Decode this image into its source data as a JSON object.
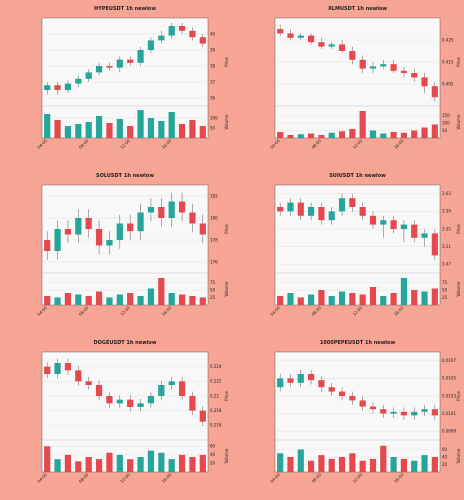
{
  "chart_data": [
    {
      "type": "candlestick",
      "title": "HYPEUSDT 1h newlow",
      "ylabel": "Price",
      "volume_label": "Volume",
      "up_color": "#26a69a",
      "down_color": "#e5484d",
      "categories": [
        "04:00",
        null,
        null,
        null,
        "08:00",
        null,
        null,
        null,
        "12:00",
        null,
        null,
        null,
        "16:00",
        null,
        null,
        null
      ],
      "open": [
        36.5,
        36.8,
        36.5,
        36.9,
        37.2,
        37.6,
        38.0,
        37.9,
        38.4,
        38.2,
        39.0,
        39.6,
        39.9,
        40.5,
        40.2,
        39.8
      ],
      "high": [
        37.0,
        37.0,
        37.1,
        37.4,
        37.8,
        38.2,
        38.2,
        38.6,
        38.6,
        39.2,
        39.8,
        40.2,
        40.7,
        40.7,
        40.4,
        40.0
      ],
      "low": [
        36.2,
        36.2,
        36.3,
        36.7,
        37.0,
        37.4,
        37.7,
        37.6,
        38.0,
        38.0,
        38.8,
        39.4,
        39.7,
        40.0,
        39.6,
        39.2
      ],
      "close": [
        36.8,
        36.5,
        36.9,
        37.2,
        37.6,
        38.0,
        37.9,
        38.4,
        38.2,
        39.0,
        39.6,
        39.9,
        40.5,
        40.2,
        39.8,
        39.4
      ],
      "volume": [
        120,
        90,
        60,
        70,
        80,
        110,
        75,
        95,
        60,
        140,
        100,
        85,
        130,
        70,
        90,
        60
      ],
      "ylim": [
        35.5,
        41
      ],
      "yticks": [
        36,
        37,
        38,
        39,
        40
      ],
      "volume_ylim": [
        0,
        150
      ],
      "volume_yticks": [
        50,
        100
      ]
    },
    {
      "type": "candlestick",
      "title": "XLMUSDT 1h newlow",
      "ylabel": "Price",
      "volume_label": "Volume",
      "up_color": "#26a69a",
      "down_color": "#e5484d",
      "categories": [
        "04:00",
        null,
        null,
        null,
        "08:00",
        null,
        null,
        null,
        "12:00",
        null,
        null,
        null,
        "16:00",
        null,
        null,
        null
      ],
      "open": [
        0.43,
        0.428,
        0.426,
        0.427,
        0.424,
        0.422,
        0.423,
        0.42,
        0.416,
        0.412,
        0.413,
        0.414,
        0.411,
        0.41,
        0.408,
        0.404
      ],
      "high": [
        0.432,
        0.43,
        0.428,
        0.428,
        0.426,
        0.424,
        0.425,
        0.422,
        0.418,
        0.415,
        0.416,
        0.416,
        0.413,
        0.412,
        0.41,
        0.406
      ],
      "low": [
        0.427,
        0.425,
        0.425,
        0.423,
        0.421,
        0.421,
        0.419,
        0.414,
        0.41,
        0.41,
        0.412,
        0.41,
        0.408,
        0.406,
        0.401,
        0.397
      ],
      "close": [
        0.428,
        0.426,
        0.427,
        0.424,
        0.422,
        0.423,
        0.42,
        0.416,
        0.412,
        0.413,
        0.414,
        0.411,
        0.41,
        0.408,
        0.404,
        0.399
      ],
      "volume": [
        40,
        20,
        25,
        30,
        20,
        35,
        45,
        60,
        180,
        50,
        30,
        40,
        35,
        50,
        70,
        90
      ],
      "ylim": [
        0.395,
        0.435
      ],
      "yticks": [
        0.405,
        0.415,
        0.425
      ],
      "volume_ylim": [
        0,
        200
      ],
      "volume_yticks": [
        50,
        100,
        150
      ]
    },
    {
      "type": "candlestick",
      "title": "SOLUSDT 1h newlow",
      "ylabel": "Price",
      "volume_label": "Volume",
      "up_color": "#26a69a",
      "down_color": "#e5484d",
      "categories": [
        "04:00",
        null,
        null,
        null,
        "08:00",
        null,
        null,
        null,
        "12:00",
        null,
        null,
        null,
        "16:00",
        null,
        null,
        null
      ],
      "open": [
        178,
        177,
        179,
        178.5,
        180,
        179,
        177.5,
        178,
        179.5,
        178.8,
        180.5,
        181,
        180,
        181.5,
        180.5,
        179.5
      ],
      "high": [
        178.8,
        179.8,
        179.8,
        180.8,
        180.8,
        179.8,
        178.8,
        180.3,
        180.3,
        181.3,
        181.8,
        181.8,
        182.3,
        182.3,
        181.3,
        180.3
      ],
      "low": [
        176.2,
        176.2,
        177.7,
        177.7,
        178.2,
        176.7,
        176.7,
        177.2,
        178.0,
        178.0,
        179.7,
        179.2,
        179.2,
        179.7,
        178.7,
        177.7
      ],
      "close": [
        177,
        179,
        178.5,
        180,
        179,
        177.5,
        178,
        179.5,
        178.8,
        180.5,
        181,
        180,
        181.5,
        180.5,
        179.5,
        178.5
      ],
      "volume": [
        30,
        25,
        40,
        35,
        30,
        45,
        25,
        35,
        40,
        30,
        55,
        90,
        40,
        35,
        30,
        25
      ],
      "ylim": [
        175,
        183
      ],
      "yticks": [
        176,
        178,
        180,
        182
      ],
      "volume_ylim": [
        0,
        100
      ],
      "volume_yticks": [
        25,
        50,
        75
      ]
    },
    {
      "type": "candlestick",
      "title": "SUIUSDT 1h newlow",
      "ylabel": "Price",
      "volume_label": "Volume",
      "up_color": "#26a69a",
      "down_color": "#e5484d",
      "categories": [
        "04:00",
        null,
        null,
        null,
        "08:00",
        null,
        null,
        null,
        "12:00",
        null,
        null,
        null,
        "16:00",
        null,
        null,
        null
      ],
      "open": [
        3.6,
        3.59,
        3.61,
        3.58,
        3.6,
        3.57,
        3.59,
        3.62,
        3.6,
        3.58,
        3.56,
        3.57,
        3.55,
        3.56,
        3.53,
        3.54
      ],
      "high": [
        3.61,
        3.62,
        3.62,
        3.61,
        3.61,
        3.6,
        3.63,
        3.63,
        3.61,
        3.59,
        3.58,
        3.58,
        3.57,
        3.57,
        3.55,
        3.55
      ],
      "low": [
        3.58,
        3.58,
        3.57,
        3.57,
        3.56,
        3.56,
        3.58,
        3.59,
        3.57,
        3.55,
        3.53,
        3.54,
        3.52,
        3.52,
        3.51,
        3.48
      ],
      "close": [
        3.59,
        3.61,
        3.58,
        3.6,
        3.57,
        3.59,
        3.62,
        3.6,
        3.58,
        3.56,
        3.57,
        3.55,
        3.56,
        3.53,
        3.54,
        3.49
      ],
      "volume": [
        30,
        40,
        25,
        35,
        50,
        30,
        45,
        40,
        35,
        60,
        30,
        40,
        90,
        50,
        45,
        55
      ],
      "ylim": [
        3.45,
        3.65
      ],
      "yticks": [
        3.47,
        3.51,
        3.55,
        3.59,
        3.63
      ],
      "volume_ylim": [
        0,
        100
      ],
      "volume_yticks": [
        25,
        50,
        75
      ]
    },
    {
      "type": "candlestick",
      "title": "DOGEUSDT 1h newlow",
      "ylabel": "Price",
      "volume_label": "Volume",
      "up_color": "#26a69a",
      "down_color": "#e5484d",
      "categories": [
        "04:00",
        null,
        null,
        null,
        "08:00",
        null,
        null,
        null,
        "12:00",
        null,
        null,
        null,
        "16:00",
        null,
        null,
        null
      ],
      "open": [
        0.224,
        0.223,
        0.2245,
        0.2235,
        0.222,
        0.2215,
        0.22,
        0.219,
        0.2195,
        0.2185,
        0.219,
        0.22,
        0.2215,
        0.222,
        0.22,
        0.218
      ],
      "high": [
        0.2246,
        0.2251,
        0.2251,
        0.2241,
        0.2226,
        0.2221,
        0.2206,
        0.2201,
        0.2201,
        0.2196,
        0.2206,
        0.2221,
        0.2226,
        0.2226,
        0.2206,
        0.2186
      ],
      "low": [
        0.2224,
        0.2224,
        0.2229,
        0.2214,
        0.2209,
        0.2194,
        0.2184,
        0.2184,
        0.2179,
        0.2179,
        0.2184,
        0.2194,
        0.2209,
        0.2194,
        0.2174,
        0.2159
      ],
      "close": [
        0.223,
        0.2245,
        0.2235,
        0.222,
        0.2215,
        0.22,
        0.219,
        0.2195,
        0.2185,
        0.219,
        0.22,
        0.2215,
        0.222,
        0.22,
        0.218,
        0.2165
      ],
      "volume": [
        60,
        30,
        40,
        25,
        35,
        30,
        45,
        40,
        30,
        35,
        50,
        45,
        30,
        40,
        35,
        40
      ],
      "ylim": [
        0.214,
        0.226
      ],
      "yticks": [
        0.216,
        0.218,
        0.22,
        0.222,
        0.224
      ],
      "volume_ylim": [
        0,
        70
      ],
      "volume_yticks": [
        20,
        40,
        60
      ]
    },
    {
      "type": "candlestick",
      "title": "1000PEPEUSDT 1h newlow",
      "ylabel": "Price",
      "volume_label": "Volume",
      "up_color": "#26a69a",
      "down_color": "#e5484d",
      "categories": [
        "04:00",
        null,
        null,
        null,
        "08:00",
        null,
        null,
        null,
        "12:00",
        null,
        null,
        null,
        "16:00",
        null,
        null,
        null
      ],
      "open": [
        0.0104,
        0.0105,
        0.01045,
        0.01055,
        0.01048,
        0.0104,
        0.01035,
        0.0103,
        0.01025,
        0.01018,
        0.01015,
        0.0101,
        0.01012,
        0.01008,
        0.01012,
        0.01015
      ],
      "high": [
        0.01055,
        0.01055,
        0.0106,
        0.0106,
        0.01053,
        0.01045,
        0.0104,
        0.01035,
        0.0103,
        0.01023,
        0.0102,
        0.01017,
        0.01017,
        0.01017,
        0.0102,
        0.0102
      ],
      "low": [
        0.01035,
        0.0104,
        0.0104,
        0.01043,
        0.01035,
        0.0103,
        0.01025,
        0.0102,
        0.01013,
        0.0101,
        0.01005,
        0.01005,
        0.01003,
        0.01003,
        0.01007,
        0.01003
      ],
      "close": [
        0.0105,
        0.01045,
        0.01055,
        0.01048,
        0.0104,
        0.01035,
        0.0103,
        0.01025,
        0.01018,
        0.01015,
        0.0101,
        0.01012,
        0.01008,
        0.01012,
        0.01015,
        0.01008
      ],
      "volume": [
        50,
        40,
        60,
        30,
        45,
        35,
        40,
        50,
        30,
        35,
        70,
        40,
        35,
        30,
        45,
        40
      ],
      "ylim": [
        0.0098,
        0.0108
      ],
      "yticks": [
        0.0099,
        0.0101,
        0.0103,
        0.0105,
        0.0107
      ],
      "volume_ylim": [
        0,
        80
      ],
      "volume_yticks": [
        20,
        40,
        60
      ]
    }
  ]
}
